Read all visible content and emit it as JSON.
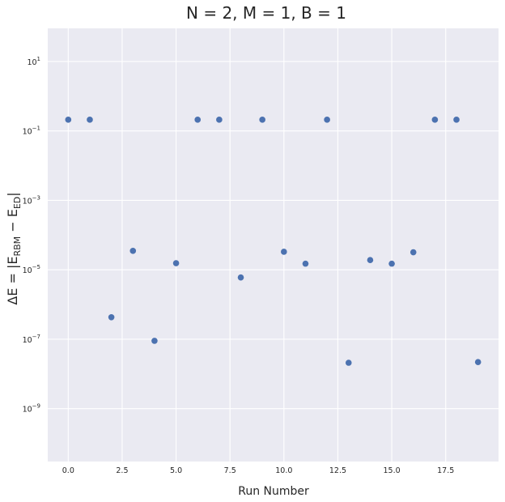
{
  "chart_data": {
    "type": "scatter",
    "title": "N = 2, M = 1, B = 1",
    "xlabel": "Run Number",
    "ylabel": {
      "prefix": "ΔE = |E",
      "sub1": "RBM",
      "mid": " − E",
      "sub2": "ED",
      "suffix": "|"
    },
    "yscale": "log",
    "grid": true,
    "colors": {
      "background": "#EAEAF2",
      "marker": "#4C72B0",
      "grid": "#FFFFFF"
    },
    "xlim": [
      -0.95,
      19.95
    ],
    "ylim": [
      3e-11,
      90.0
    ],
    "x_ticks": [
      0.0,
      2.5,
      5.0,
      7.5,
      10.0,
      12.5,
      15.0,
      17.5
    ],
    "x_tick_labels": [
      "0.0",
      "2.5",
      "5.0",
      "7.5",
      "10.0",
      "12.5",
      "15.0",
      "17.5"
    ],
    "y_ticks": [
      {
        "value": 10.0,
        "base": "10",
        "exp": "1"
      },
      {
        "value": 0.1,
        "base": "10",
        "exp": "−1"
      },
      {
        "value": 0.001,
        "base": "10",
        "exp": "−3"
      },
      {
        "value": 1e-05,
        "base": "10",
        "exp": "−5"
      },
      {
        "value": 1e-07,
        "base": "10",
        "exp": "−7"
      },
      {
        "value": 1e-09,
        "base": "10",
        "exp": "−9"
      }
    ],
    "x": [
      0,
      1,
      2,
      3,
      4,
      5,
      6,
      7,
      8,
      9,
      10,
      11,
      12,
      13,
      14,
      15,
      16,
      17,
      18,
      19
    ],
    "y": [
      0.21,
      0.21,
      4.3e-07,
      3.5e-05,
      9e-08,
      1.55e-05,
      0.21,
      0.21,
      6e-06,
      0.21,
      3.3e-05,
      1.5e-05,
      0.21,
      2.1e-08,
      1.9e-05,
      1.5e-05,
      3.2e-05,
      0.21,
      0.21,
      2.2e-08
    ]
  }
}
